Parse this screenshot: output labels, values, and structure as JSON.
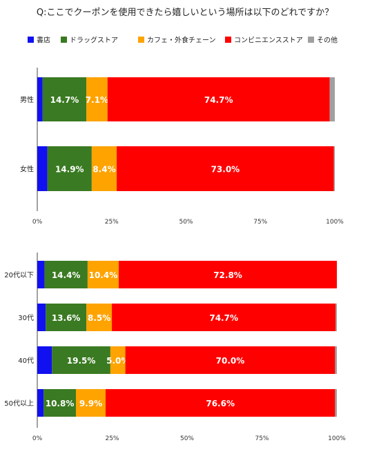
{
  "title": "Q:ここでクーポンを使用できたら嬉しいという場所は以下のどれですか？",
  "legend": [
    "書店",
    "ドラッグストア",
    "カフェ・外食チェーン",
    "コンビニエンスストア",
    "その他"
  ],
  "colors": [
    "#1010f0",
    "#3a7a22",
    "#ffa300",
    "#ff0000",
    "#a0a0a0"
  ],
  "chart_data": [
    {
      "type": "bar",
      "orientation": "horizontal",
      "stacked": true,
      "categories": [
        "男性",
        "女性"
      ],
      "series": [
        {
          "name": "書店",
          "values": [
            1.8,
            3.4
          ]
        },
        {
          "name": "ドラッグストア",
          "values": [
            14.7,
            14.9
          ]
        },
        {
          "name": "カフェ・外食チェーン",
          "values": [
            7.1,
            8.4
          ]
        },
        {
          "name": "コンビニエンスストア",
          "values": [
            74.7,
            73.0
          ]
        },
        {
          "name": "その他",
          "values": [
            1.7,
            0.3
          ]
        }
      ],
      "data_labels": [
        {
          "series": "ドラッグストア",
          "labels": [
            "14.7%",
            "14.9%"
          ]
        },
        {
          "series": "カフェ・外食チェーン",
          "labels": [
            "7.1%",
            "8.4%"
          ]
        },
        {
          "series": "コンビニエンスストア",
          "labels": [
            "74.7%",
            "73.0%"
          ]
        }
      ],
      "xticks": [
        "0%",
        "25%",
        "50%",
        "75%",
        "100%"
      ],
      "xlim": [
        0,
        100
      ],
      "grid": false,
      "legend_position": "top"
    },
    {
      "type": "bar",
      "orientation": "horizontal",
      "stacked": true,
      "categories": [
        "20代以下",
        "30代",
        "40代",
        "50代以上"
      ],
      "series": [
        {
          "name": "書店",
          "values": [
            2.4,
            2.8,
            4.9,
            2.1
          ]
        },
        {
          "name": "ドラッグストア",
          "values": [
            14.4,
            13.6,
            19.5,
            10.8
          ]
        },
        {
          "name": "カフェ・外食チェーン",
          "values": [
            10.4,
            8.5,
            5.0,
            9.9
          ]
        },
        {
          "name": "コンビニエンスストア",
          "values": [
            72.8,
            74.7,
            70.0,
            76.6
          ]
        },
        {
          "name": "その他",
          "values": [
            0.0,
            0.4,
            0.6,
            0.6
          ]
        }
      ],
      "data_labels": [
        {
          "series": "ドラッグストア",
          "labels": [
            "14.4%",
            "13.6%",
            "19.5%",
            "10.8%"
          ]
        },
        {
          "series": "カフェ・外食チェーン",
          "labels": [
            "10.4%",
            "8.5%",
            "5.0%",
            "9.9%"
          ]
        },
        {
          "series": "コンビニエンスストア",
          "labels": [
            "72.8%",
            "74.7%",
            "70.0%",
            "76.6%"
          ]
        }
      ],
      "xticks": [
        "0%",
        "25%",
        "50%",
        "75%",
        "100%"
      ],
      "xlim": [
        0,
        100
      ],
      "grid": false,
      "legend_position": "top"
    }
  ]
}
